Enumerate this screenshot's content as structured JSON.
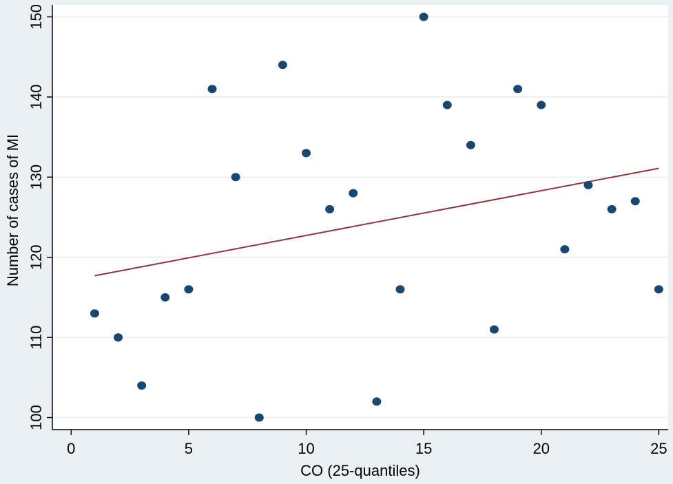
{
  "chart_data": {
    "type": "scatter",
    "title": "",
    "xlabel": "CO  (25-quantiles)",
    "ylabel": "Number of cases of MI",
    "xlim": [
      -0.8,
      25.4
    ],
    "ylim": [
      98.5,
      151.5
    ],
    "xticks": [
      0,
      5,
      10,
      15,
      20,
      25
    ],
    "yticks": [
      100,
      110,
      120,
      130,
      140,
      150
    ],
    "grid": "horizontal",
    "legend": "none",
    "point_color": "#1a476f",
    "fit_color": "#90353b",
    "background_outer": "#eaf0f3",
    "background_plot": "#ffffff",
    "series": [
      {
        "kind": "points",
        "x": [
          1,
          2,
          3,
          4,
          5,
          6,
          7,
          8,
          9,
          10,
          11,
          12,
          13,
          14,
          15,
          16,
          17,
          18,
          19,
          20,
          21,
          22,
          23,
          24,
          25
        ],
        "y": [
          113,
          110,
          104,
          115,
          116,
          141,
          130,
          100,
          144,
          133,
          126,
          128,
          102,
          116,
          150,
          139,
          134,
          111,
          141,
          139,
          121,
          129,
          126,
          127,
          116
        ]
      },
      {
        "kind": "fitted line",
        "x": [
          1,
          25
        ],
        "y": [
          117.7,
          131.1
        ]
      }
    ]
  }
}
